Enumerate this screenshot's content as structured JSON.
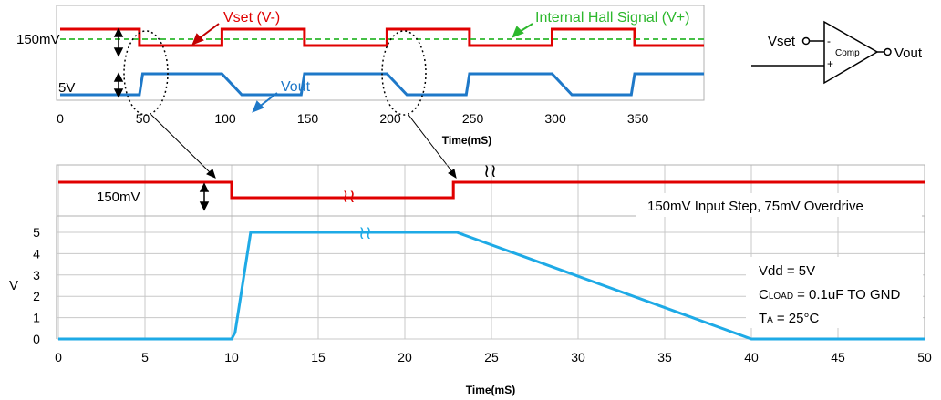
{
  "chart_data": [
    {
      "type": "line",
      "xlabel": "Time(mS)",
      "xlim": [
        0,
        390
      ],
      "xticks": [
        "0",
        "50",
        "100",
        "150",
        "200",
        "250",
        "300",
        "350"
      ],
      "grid": false,
      "series": [
        {
          "name": "Vset (V-)",
          "color": "#e00000",
          "x": [
            0,
            48,
            48,
            98,
            98,
            148,
            148,
            198,
            198,
            248,
            248,
            298,
            298,
            348,
            348,
            390
          ],
          "y": [
            1,
            1,
            0,
            0,
            1,
            1,
            0,
            0,
            1,
            1,
            0,
            0,
            1,
            1,
            0,
            0
          ]
        },
        {
          "name": "Internal Hall Signal (V+)",
          "color": "#2db82d",
          "style": "dashed",
          "x": [
            0,
            390
          ],
          "y": [
            0.5,
            0.5
          ]
        },
        {
          "name": "Vout",
          "color": "#1e78c8",
          "x": [
            0,
            48,
            50,
            98,
            110,
            146,
            148,
            198,
            210,
            246,
            248,
            298,
            310,
            346,
            348,
            390
          ],
          "y": [
            0,
            0,
            1,
            1,
            0,
            0,
            1,
            1,
            0,
            0,
            1,
            1,
            0,
            0,
            1,
            1
          ]
        }
      ],
      "annotations": [
        "150mV",
        "5V"
      ]
    },
    {
      "type": "line",
      "xlabel": "Time(mS)",
      "ylabel": "V",
      "xlim": [
        0,
        50
      ],
      "ylim": [
        0,
        5
      ],
      "xticks": [
        "0",
        "5",
        "10",
        "15",
        "20",
        "25",
        "30",
        "35",
        "40",
        "45",
        "50"
      ],
      "yticks": [
        "0",
        "1",
        "2",
        "3",
        "4",
        "5"
      ],
      "grid": true,
      "series": [
        {
          "name": "Vset",
          "color": "#e00000",
          "x": [
            0,
            10,
            10,
            22.8,
            22.8,
            50
          ],
          "y": [
            1,
            1,
            0,
            0,
            1,
            1
          ]
        },
        {
          "name": "Vout",
          "color": "#1eaae6",
          "x": [
            0,
            10,
            10.2,
            11.1,
            23,
            40,
            50
          ],
          "y": [
            0,
            0,
            0.3,
            5,
            5,
            0,
            0
          ]
        }
      ],
      "annotations": [
        "150mV",
        "150mV Input Step, 75mV Overdrive",
        "Vdd = 5V",
        "C",
        "LOAD",
        "= 0.1uF TO GND",
        "T",
        "A",
        "= 25°C"
      ]
    }
  ],
  "labels": {
    "vset_series": "Vset (V-)",
    "hall_series": "Internal Hall Signal (V+)",
    "vout_series": "Vout",
    "top_150mv": "150mV",
    "top_5v": "5V",
    "bottom_150mv": "150mV",
    "step_note": "150mV Input Step, 75mV Overdrive",
    "vdd": "Vdd = 5V",
    "cload_main": "C",
    "cload_sub": "LOAD",
    "cload_rest": "= 0.1uF TO GND",
    "ta_main": "T",
    "ta_sub": "A",
    "ta_rest": "= 25°C",
    "y_label": "V",
    "top_xlabel": "Time(mS)",
    "bottom_xlabel": "Time(mS)",
    "break_mark": "≀≀"
  },
  "schematic": {
    "input_label": "Vset",
    "minus": "-",
    "plus": "+",
    "block_label": "Comp",
    "output_label": "Vout"
  }
}
